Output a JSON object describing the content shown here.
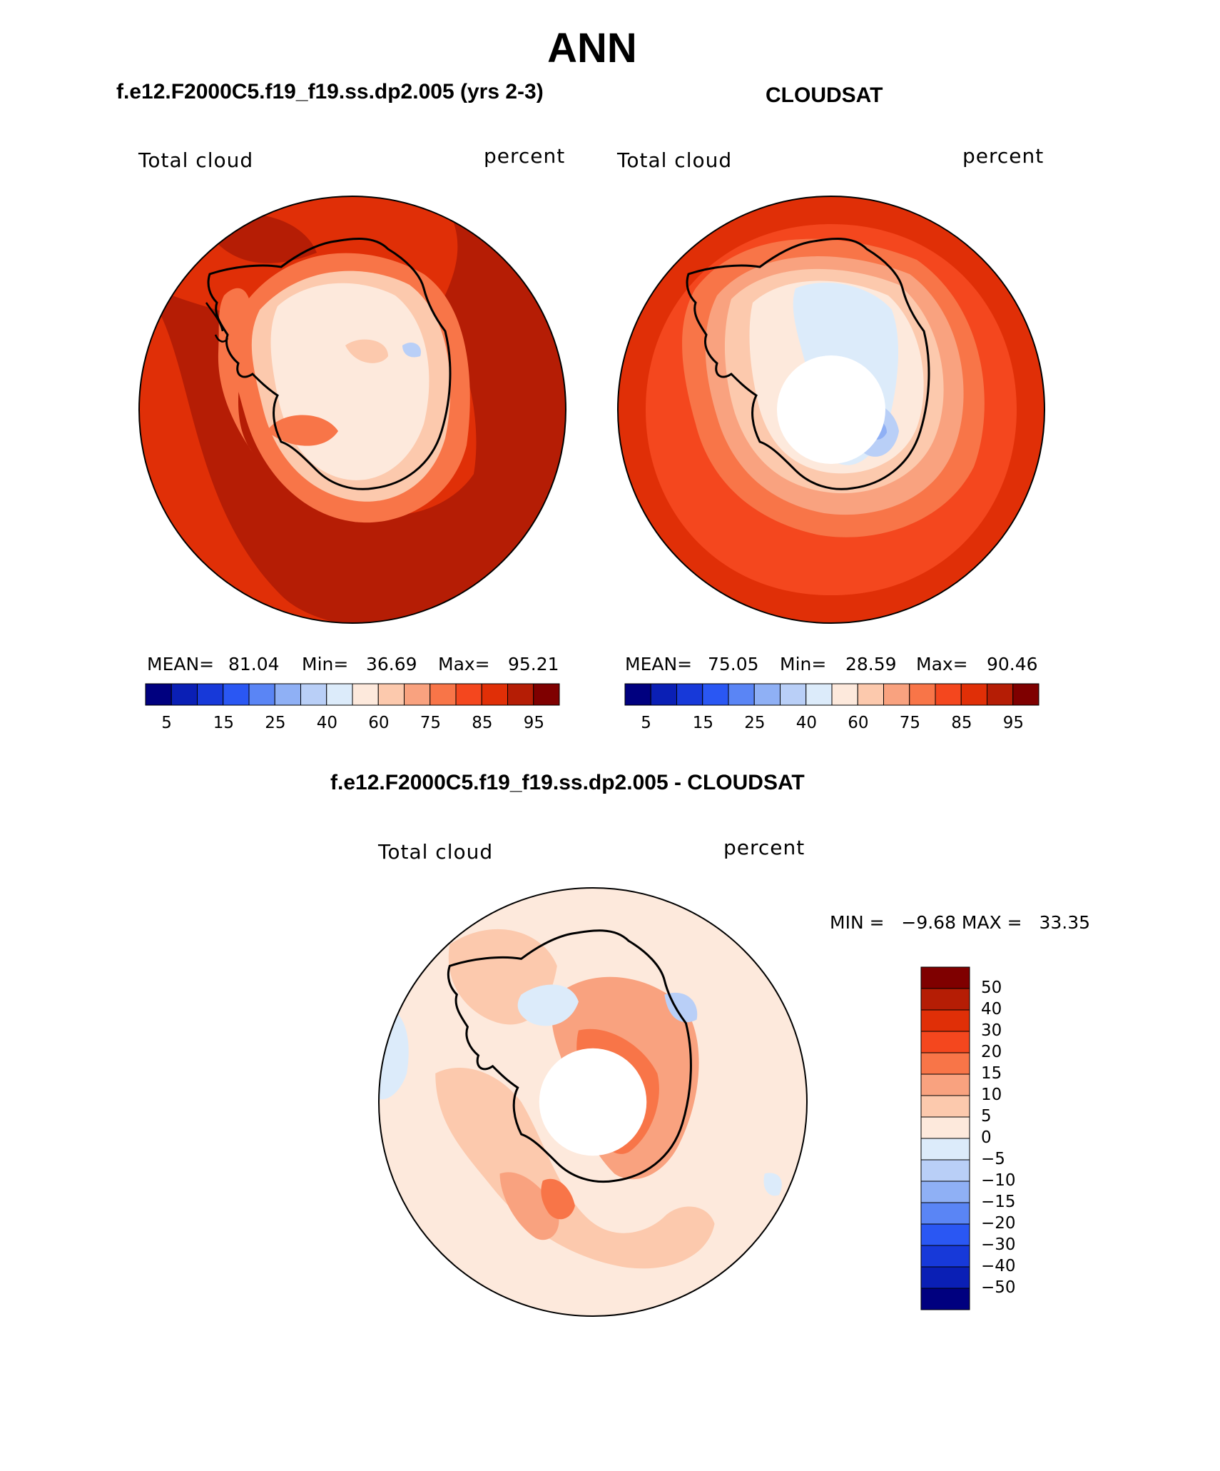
{
  "title": "ANN",
  "panels": [
    {
      "id": "model",
      "heading": "f.e12.F2000C5.f19_f19.ss.dp2.005 (yrs 2-3)",
      "variable": "Total cloud",
      "units": "percent",
      "stats": {
        "mean_label": "MEAN=",
        "mean": "81.04",
        "min_label": "Min=",
        "min": "36.69",
        "max_label": "Max=",
        "max": "95.21"
      },
      "colorbar_ticks": [
        "5",
        "15",
        "25",
        "40",
        "60",
        "75",
        "85",
        "95"
      ]
    },
    {
      "id": "obs",
      "heading": "CLOUDSAT",
      "variable": "Total cloud",
      "units": "percent",
      "stats": {
        "mean_label": "MEAN=",
        "mean": "75.05",
        "min_label": "Min=",
        "min": "28.59",
        "max_label": "Max=",
        "max": "90.46"
      },
      "colorbar_ticks": [
        "5",
        "15",
        "25",
        "40",
        "60",
        "75",
        "85",
        "95"
      ]
    }
  ],
  "diff": {
    "heading": "f.e12.F2000C5.f19_f19.ss.dp2.005 - CLOUDSAT",
    "variable": "Total cloud",
    "units": "percent",
    "minmax": "MIN =   −9.68 MAX =   33.35",
    "colorbar_ticks": [
      "50",
      "40",
      "30",
      "20",
      "15",
      "10",
      "5",
      "0",
      "−5",
      "−10",
      "−15",
      "−20",
      "−30",
      "−40",
      "−50"
    ]
  },
  "colors": {
    "abs_scale": [
      "#00007f",
      "#0a1fb5",
      "#1739d9",
      "#2a57f3",
      "#5a85f5",
      "#8fb0f5",
      "#b9cff7",
      "#dcebfa",
      "#fde9dc",
      "#fcc9ad",
      "#f9a27f",
      "#f87548",
      "#f4471e",
      "#e02f07",
      "#b51d05",
      "#7f0000"
    ],
    "diff_scale": [
      "#00007f",
      "#0a1fb5",
      "#1739d9",
      "#2a57f3",
      "#5a85f5",
      "#8fb0f5",
      "#b9cff7",
      "#dcebfa",
      "#fde9dc",
      "#fcc9ad",
      "#f9a27f",
      "#f87548",
      "#f4471e",
      "#e02f07",
      "#b51d05",
      "#7f0000"
    ]
  }
}
